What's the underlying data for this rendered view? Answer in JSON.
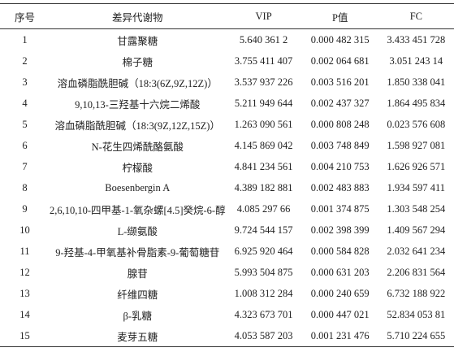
{
  "table": {
    "header": [
      "序号",
      "差异代谢物",
      "VIP",
      "P值",
      "FC"
    ],
    "rows": [
      [
        "1",
        "甘露聚糖",
        "5.640 361 2",
        "0.000 482 315",
        "3.433 451 728"
      ],
      [
        "2",
        "棉子糖",
        "3.755 411 407",
        "0.002 064 681",
        "3.051 243 14"
      ],
      [
        "3",
        "溶血磷脂酰胆碱（18:3(6Z,9Z,12Z)）",
        "3.537 937 226",
        "0.003 516 201",
        "1.850 338 041"
      ],
      [
        "4",
        "9,10,13-三羟基十六烷二烯酸",
        "5.211 949 644",
        "0.002 437 327",
        "1.864 495 834"
      ],
      [
        "5",
        "溶血磷脂酰胆碱（18:3(9Z,12Z,15Z)）",
        "1.263 090 561",
        "0.000 808 248",
        "0.023 576 608"
      ],
      [
        "6",
        "N-花生四烯酰酪氨酸",
        "4.145 869 042",
        "0.003 748 849",
        "1.598 927 081"
      ],
      [
        "7",
        "柠檬酸",
        "4.841 234 561",
        "0.004 210 753",
        "1.626 926 571"
      ],
      [
        "8",
        "Boesenbergin A",
        "4.389 182 881",
        "0.002 483 883",
        "1.934 597 411"
      ],
      [
        "9",
        "2,6,10,10-四甲基-1-氧杂螺[4.5]癸烷-6-醇",
        "4.085 297 66",
        "0.001 374 875",
        "1.303 548 254"
      ],
      [
        "10",
        "L-缬氨酸",
        "9.724 544 157",
        "0.002 398 399",
        "1.409 567 294"
      ],
      [
        "11",
        "9-羟基-4-甲氧基补骨脂素-9-葡萄糖苷",
        "6.925 920 464",
        "0.000 584 828",
        "2.032 641 234"
      ],
      [
        "12",
        "腺苷",
        "5.993 504 875",
        "0.000 631 203",
        "2.206 831 564"
      ],
      [
        "13",
        "纤维四糖",
        "1.008 312 284",
        "0.000 240 659",
        "6.732 188 922"
      ],
      [
        "14",
        "β-乳糖",
        "4.323 673 701",
        "0.000 447 021",
        "52.834 053 81"
      ],
      [
        "15",
        "麦芽五糖",
        "4.053 587 203",
        "0.001 231 476",
        "5.710 224 655"
      ]
    ]
  }
}
